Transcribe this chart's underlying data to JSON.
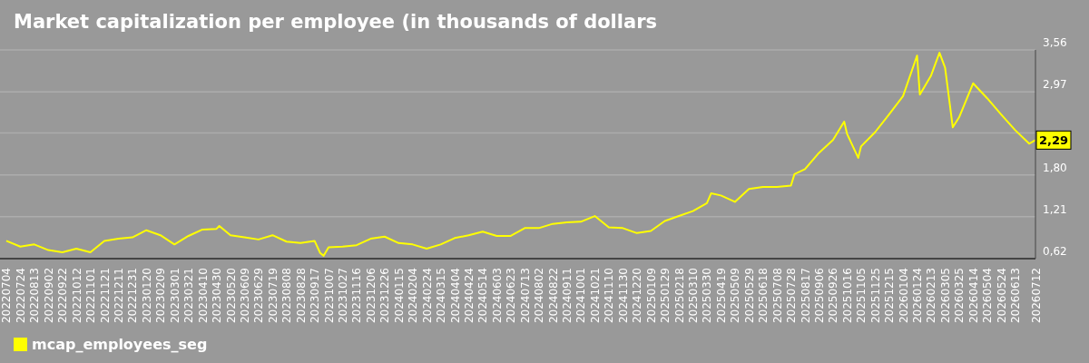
{
  "chart_data": {
    "type": "line",
    "title": "Market capitalization per employee (in thousands of dollars",
    "x": [
      "2022-07-04",
      "2022-07-24",
      "2022-08-13",
      "2022-09-02",
      "2022-09-22",
      "2022-10-12",
      "2022-11-01",
      "2022-11-21",
      "2022-12-11",
      "2022-12-31",
      "2023-01-20",
      "2023-02-09",
      "2023-03-01",
      "2023-03-21",
      "2023-04-10",
      "2023-04-30",
      "2023-05-04",
      "2023-05-20",
      "2023-06-09",
      "2023-06-29",
      "2023-07-19",
      "2023-08-08",
      "2023-08-28",
      "2023-09-17",
      "2023-09-25",
      "2023-09-30",
      "2023-10-07",
      "2023-10-27",
      "2023-11-16",
      "2023-12-06",
      "2023-12-26",
      "2024-01-15",
      "2024-02-04",
      "2024-02-24",
      "2024-03-15",
      "2024-04-04",
      "2024-04-24",
      "2024-05-14",
      "2024-06-03",
      "2024-06-23",
      "2024-07-13",
      "2024-08-02",
      "2024-08-22",
      "2024-09-11",
      "2024-10-01",
      "2024-10-21",
      "2024-11-10",
      "2024-11-30",
      "2024-12-20",
      "2025-01-09",
      "2025-01-29",
      "2025-02-18",
      "2025-03-10",
      "2025-03-30",
      "2025-04-05",
      "2025-04-19",
      "2025-05-09",
      "2025-05-29",
      "2025-06-18",
      "2025-07-08",
      "2025-07-28",
      "2025-08-02",
      "2025-08-17",
      "2025-09-06",
      "2025-09-26",
      "2025-10-12",
      "2025-10-16",
      "2025-11-01",
      "2025-11-05",
      "2025-11-25",
      "2025-12-15",
      "2026-01-04",
      "2026-01-24",
      "2026-01-28",
      "2026-02-13",
      "2026-02-25",
      "2026-03-05",
      "2026-03-16",
      "2026-03-25",
      "2026-04-14",
      "2026-05-04",
      "2026-05-24",
      "2026-06-13",
      "2026-07-03",
      "2026-07-12"
    ],
    "series": [
      {
        "name": "mcap_employees_seg",
        "color": "#ffff00",
        "values": [
          0.87,
          0.79,
          0.82,
          0.74,
          0.71,
          0.76,
          0.71,
          0.87,
          0.9,
          0.92,
          1.02,
          0.95,
          0.82,
          0.94,
          1.03,
          1.04,
          1.08,
          0.95,
          0.92,
          0.89,
          0.95,
          0.86,
          0.84,
          0.87,
          0.7,
          0.66,
          0.78,
          0.79,
          0.81,
          0.9,
          0.93,
          0.84,
          0.82,
          0.76,
          0.82,
          0.91,
          0.95,
          1.0,
          0.94,
          0.94,
          1.05,
          1.05,
          1.11,
          1.13,
          1.14,
          1.22,
          1.06,
          1.05,
          0.98,
          1.01,
          1.15,
          1.22,
          1.29,
          1.4,
          1.54,
          1.51,
          1.42,
          1.6,
          1.63,
          1.63,
          1.65,
          1.81,
          1.88,
          2.11,
          2.29,
          2.55,
          2.38,
          2.04,
          2.2,
          2.4,
          2.65,
          2.91,
          3.48,
          2.93,
          3.2,
          3.52,
          3.31,
          2.47,
          2.61,
          3.09,
          2.88,
          2.65,
          2.43,
          2.24,
          2.29
        ]
      }
    ],
    "xlim": [
      "2022-06-25",
      "2026-07-12"
    ],
    "xticks": [
      {
        "value": "2022-07-04",
        "label": "20220704"
      },
      {
        "value": "2022-07-24",
        "label": "20220724"
      },
      {
        "value": "2022-08-13",
        "label": "20220813"
      },
      {
        "value": "2022-09-02",
        "label": "20220902"
      },
      {
        "value": "2022-09-22",
        "label": "20220922"
      },
      {
        "value": "2022-10-12",
        "label": "20221012"
      },
      {
        "value": "2022-11-01",
        "label": "20221101"
      },
      {
        "value": "2022-11-21",
        "label": "20221121"
      },
      {
        "value": "2022-12-11",
        "label": "20221211"
      },
      {
        "value": "2022-12-31",
        "label": "20221231"
      },
      {
        "value": "2023-01-20",
        "label": "20230120"
      },
      {
        "value": "2023-02-09",
        "label": "20230209"
      },
      {
        "value": "2023-03-01",
        "label": "20230301"
      },
      {
        "value": "2023-03-21",
        "label": "20230321"
      },
      {
        "value": "2023-04-10",
        "label": "20230410"
      },
      {
        "value": "2023-04-30",
        "label": "20230430"
      },
      {
        "value": "2023-05-20",
        "label": "20230520"
      },
      {
        "value": "2023-06-09",
        "label": "20230609"
      },
      {
        "value": "2023-06-29",
        "label": "20230629"
      },
      {
        "value": "2023-07-19",
        "label": "20230719"
      },
      {
        "value": "2023-08-08",
        "label": "20230808"
      },
      {
        "value": "2023-08-28",
        "label": "20230828"
      },
      {
        "value": "2023-09-17",
        "label": "20230917"
      },
      {
        "value": "2023-10-07",
        "label": "20231007"
      },
      {
        "value": "2023-10-27",
        "label": "20231027"
      },
      {
        "value": "2023-11-16",
        "label": "20231116"
      },
      {
        "value": "2023-12-06",
        "label": "20231206"
      },
      {
        "value": "2023-12-26",
        "label": "20231226"
      },
      {
        "value": "2024-01-15",
        "label": "20240115"
      },
      {
        "value": "2024-02-04",
        "label": "20240204"
      },
      {
        "value": "2024-02-24",
        "label": "20240224"
      },
      {
        "value": "2024-03-15",
        "label": "20240315"
      },
      {
        "value": "2024-04-04",
        "label": "20240404"
      },
      {
        "value": "2024-04-24",
        "label": "20240424"
      },
      {
        "value": "2024-05-14",
        "label": "20240514"
      },
      {
        "value": "2024-06-03",
        "label": "20240603"
      },
      {
        "value": "2024-06-23",
        "label": "20240623"
      },
      {
        "value": "2024-07-13",
        "label": "20240713"
      },
      {
        "value": "2024-08-02",
        "label": "20240802"
      },
      {
        "value": "2024-08-22",
        "label": "20240822"
      },
      {
        "value": "2024-09-11",
        "label": "20240911"
      },
      {
        "value": "2024-10-01",
        "label": "20241001"
      },
      {
        "value": "2024-10-21",
        "label": "20241021"
      },
      {
        "value": "2024-11-10",
        "label": "20241110"
      },
      {
        "value": "2024-11-30",
        "label": "20241130"
      },
      {
        "value": "2024-12-20",
        "label": "20241220"
      },
      {
        "value": "2025-01-09",
        "label": "20250109"
      },
      {
        "value": "2025-01-29",
        "label": "20250129"
      },
      {
        "value": "2025-02-18",
        "label": "20250218"
      },
      {
        "value": "2025-03-10",
        "label": "20250310"
      },
      {
        "value": "2025-03-30",
        "label": "20250330"
      },
      {
        "value": "2025-04-19",
        "label": "20250419"
      },
      {
        "value": "2025-05-09",
        "label": "20250509"
      },
      {
        "value": "2025-05-29",
        "label": "20250529"
      },
      {
        "value": "2025-06-18",
        "label": "20250618"
      },
      {
        "value": "2025-07-08",
        "label": "20250708"
      },
      {
        "value": "2025-07-28",
        "label": "20250728"
      },
      {
        "value": "2025-08-17",
        "label": "20250817"
      },
      {
        "value": "2025-09-06",
        "label": "20250906"
      },
      {
        "value": "2025-09-26",
        "label": "20250926"
      },
      {
        "value": "2025-10-16",
        "label": "20251016"
      },
      {
        "value": "2025-11-05",
        "label": "20251105"
      },
      {
        "value": "2025-11-25",
        "label": "20251125"
      },
      {
        "value": "2025-12-15",
        "label": "20251215"
      },
      {
        "value": "2026-01-04",
        "label": "20260104"
      },
      {
        "value": "2026-01-24",
        "label": "20260124"
      },
      {
        "value": "2026-02-13",
        "label": "20260213"
      },
      {
        "value": "2026-03-05",
        "label": "20260305"
      },
      {
        "value": "2026-03-25",
        "label": "20260325"
      },
      {
        "value": "2026-04-14",
        "label": "20260414"
      },
      {
        "value": "2026-05-04",
        "label": "20260504"
      },
      {
        "value": "2026-05-24",
        "label": "20260524"
      },
      {
        "value": "2026-06-13",
        "label": "20260613"
      },
      {
        "value": "2026-07-12",
        "label": "20260712"
      }
    ],
    "ylim": [
      0.62,
      3.56
    ],
    "yticks": [
      {
        "value": 0.62,
        "label": "0,62"
      },
      {
        "value": 1.21,
        "label": "1,21"
      },
      {
        "value": 1.8,
        "label": "1,80"
      },
      {
        "value": 2.39,
        "label": null
      },
      {
        "value": 2.97,
        "label": "2,97"
      },
      {
        "value": 3.56,
        "label": "3,56"
      }
    ],
    "annotations": [
      {
        "text": "2,29",
        "x": "2026-07-12",
        "y": 2.29
      }
    ],
    "grid": "y",
    "legend": "bottom left",
    "marker": "none",
    "line_style": "solid"
  }
}
